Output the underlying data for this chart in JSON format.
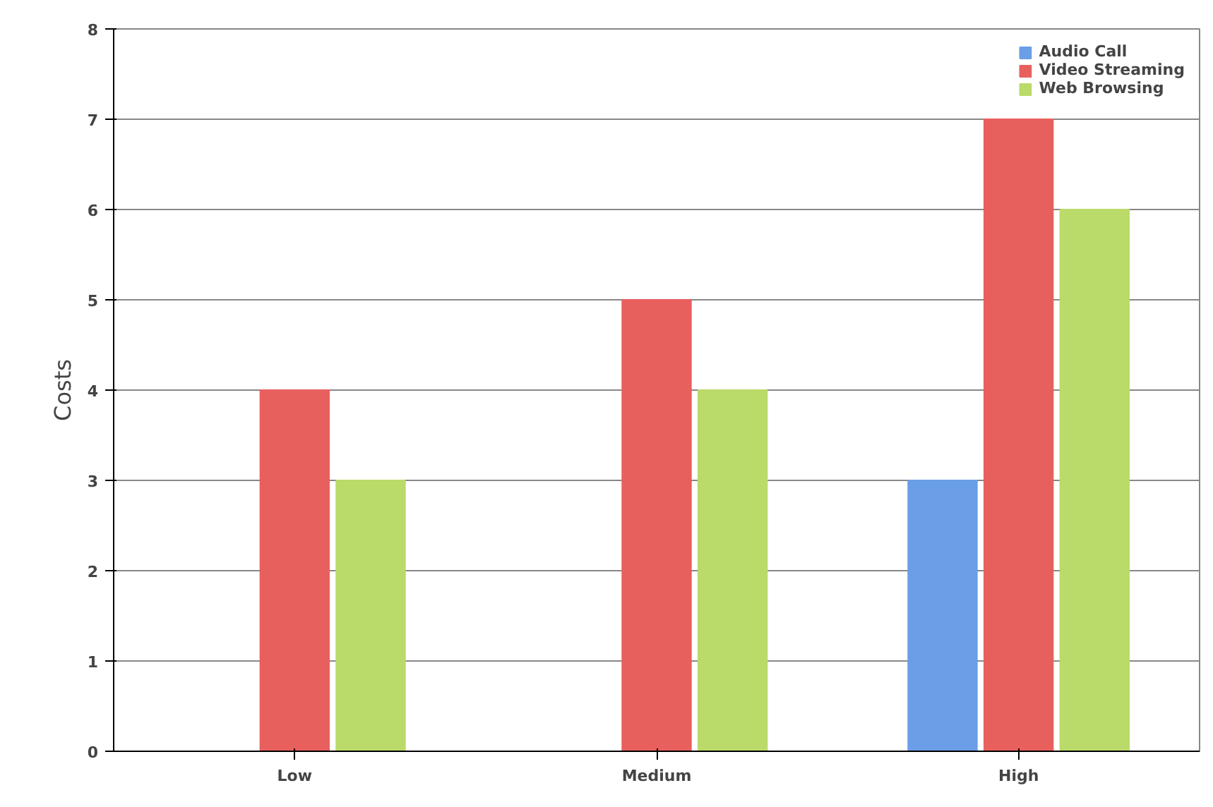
{
  "chart_data": {
    "type": "bar",
    "ylabel": "Costs",
    "categories": [
      "Low",
      "Medium",
      "High"
    ],
    "series": [
      {
        "name": "Audio Call",
        "color": "#6a9ee6",
        "values": [
          0,
          0,
          3
        ]
      },
      {
        "name": "Video Streaming",
        "color": "#e8605e",
        "values": [
          4,
          5,
          7
        ]
      },
      {
        "name": "Web Browsing",
        "color": "#bada6a",
        "values": [
          3,
          4,
          6
        ]
      }
    ],
    "ylim": [
      0,
      8
    ],
    "yticks": [
      0,
      1,
      2,
      3,
      4,
      5,
      6,
      7,
      8
    ],
    "grid": "y",
    "legend": "top right"
  }
}
